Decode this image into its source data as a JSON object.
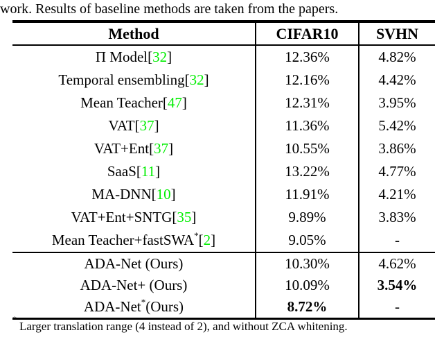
{
  "caption": "work. Results of baseline methods are taken from the papers.",
  "colors": {
    "citation_green": "#00EE00",
    "text": "#000000",
    "background": "#ffffff"
  },
  "footnote": {
    "marker": "*",
    "text": "Larger translation range (4 instead of 2), and without ZCA whitening."
  },
  "table": {
    "headers": [
      "Method",
      "CIFAR10",
      "SVHN"
    ],
    "rows": [
      {
        "section": "baseline",
        "method": [
          {
            "t": "Π Model "
          },
          {
            "t": "["
          },
          {
            "t": "32",
            "c": "cite"
          },
          {
            "t": "]"
          }
        ],
        "cifar10": {
          "text": "12.36%",
          "bold": false
        },
        "svhn": {
          "text": "4.82%",
          "bold": false
        }
      },
      {
        "section": "baseline",
        "method": [
          {
            "t": "Temporal ensembling "
          },
          {
            "t": "["
          },
          {
            "t": "32",
            "c": "cite"
          },
          {
            "t": "]"
          }
        ],
        "cifar10": {
          "text": "12.16%",
          "bold": false
        },
        "svhn": {
          "text": "4.42%",
          "bold": false
        }
      },
      {
        "section": "baseline",
        "method": [
          {
            "t": "Mean Teacher"
          },
          {
            "t": "["
          },
          {
            "t": "47",
            "c": "cite"
          },
          {
            "t": "]"
          }
        ],
        "cifar10": {
          "text": "12.31%",
          "bold": false
        },
        "svhn": {
          "text": "3.95%",
          "bold": false
        }
      },
      {
        "section": "baseline",
        "method": [
          {
            "t": "VAT "
          },
          {
            "t": "["
          },
          {
            "t": "37",
            "c": "cite"
          },
          {
            "t": "]"
          }
        ],
        "cifar10": {
          "text": "11.36%",
          "bold": false
        },
        "svhn": {
          "text": "5.42%",
          "bold": false
        }
      },
      {
        "section": "baseline",
        "method": [
          {
            "t": "VAT+Ent "
          },
          {
            "t": "["
          },
          {
            "t": "37",
            "c": "cite"
          },
          {
            "t": "]"
          }
        ],
        "cifar10": {
          "text": "10.55%",
          "bold": false
        },
        "svhn": {
          "text": "3.86%",
          "bold": false
        }
      },
      {
        "section": "baseline",
        "method": [
          {
            "t": "SaaS "
          },
          {
            "t": "["
          },
          {
            "t": "11",
            "c": "cite"
          },
          {
            "t": "]"
          }
        ],
        "cifar10": {
          "text": "13.22%",
          "bold": false
        },
        "svhn": {
          "text": "4.77%",
          "bold": false
        }
      },
      {
        "section": "baseline",
        "method": [
          {
            "t": "MA-DNN "
          },
          {
            "t": "["
          },
          {
            "t": "10",
            "c": "cite"
          },
          {
            "t": "]"
          }
        ],
        "cifar10": {
          "text": "11.91%",
          "bold": false
        },
        "svhn": {
          "text": "4.21%",
          "bold": false
        }
      },
      {
        "section": "baseline",
        "method": [
          {
            "t": "VAT+Ent+SNTG "
          },
          {
            "t": "["
          },
          {
            "t": "35",
            "c": "cite"
          },
          {
            "t": "]"
          }
        ],
        "cifar10": {
          "text": "9.89%",
          "bold": false
        },
        "svhn": {
          "text": "3.83%",
          "bold": false
        }
      },
      {
        "section": "baseline",
        "method": [
          {
            "t": "Mean Teacher+fastSWA"
          },
          {
            "t": "*",
            "c": "sup"
          },
          {
            "t": " ["
          },
          {
            "t": "2",
            "c": "cite"
          },
          {
            "t": "]"
          }
        ],
        "cifar10": {
          "text": "9.05%",
          "bold": false
        },
        "svhn": {
          "text": "-",
          "bold": false
        }
      },
      {
        "section": "ours",
        "rule_above": true,
        "method": [
          {
            "t": "ADA-Net (Ours)"
          }
        ],
        "cifar10": {
          "text": "10.30%",
          "bold": false
        },
        "svhn": {
          "text": "4.62%",
          "bold": false
        }
      },
      {
        "section": "ours",
        "method": [
          {
            "t": "ADA-Net+ (Ours)"
          }
        ],
        "cifar10": {
          "text": "10.09%",
          "bold": false
        },
        "svhn": {
          "text": "3.54%",
          "bold": true
        }
      },
      {
        "section": "ours",
        "method": [
          {
            "t": "ADA-Net"
          },
          {
            "t": "*",
            "c": "sup"
          },
          {
            "t": "(Ours)"
          }
        ],
        "cifar10": {
          "text": "8.72%",
          "bold": true
        },
        "svhn": {
          "text": "-",
          "bold": false
        }
      }
    ]
  }
}
